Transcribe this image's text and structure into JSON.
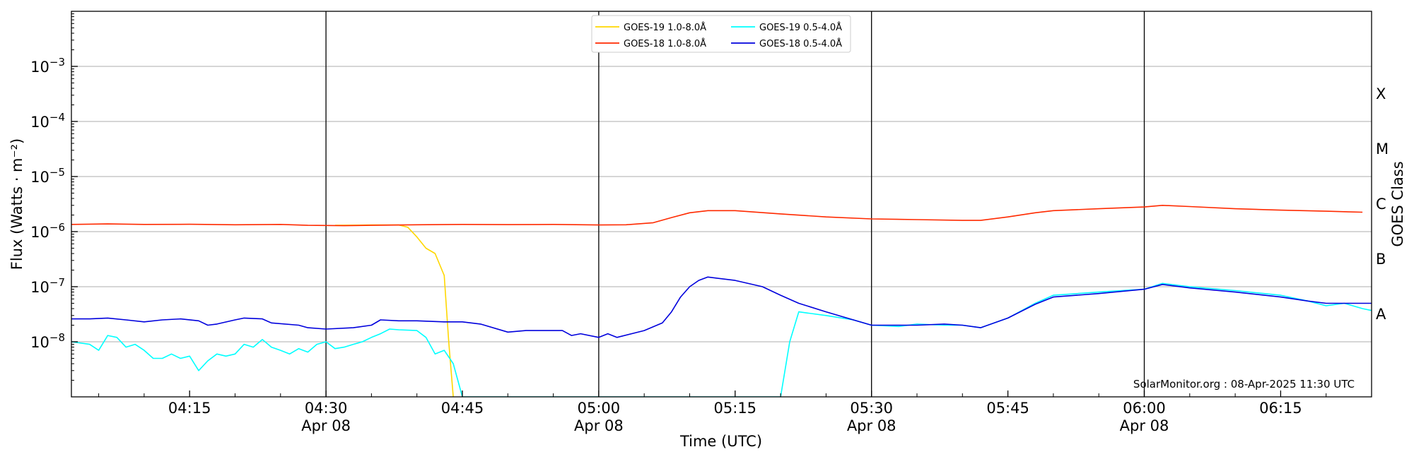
{
  "chart_data": {
    "type": "line",
    "xlabel": "Time (UTC)",
    "ylabel": "Flux (Watts · m⁻²)",
    "y2label": "GOES Class",
    "yscale": "log",
    "xlim": [
      "2025-04-08 04:02",
      "2025-04-08 06:25"
    ],
    "ylim": [
      1e-09,
      0.01
    ],
    "grid": "horizontal at decades, vertical at every 30 min",
    "legend_position": "top-center",
    "watermark": "SolarMonitor.org : 08-Apr-2025 11:30 UTC",
    "x_ticks": [
      {
        "time": "04:15",
        "date": ""
      },
      {
        "time": "04:30",
        "date": "Apr 08"
      },
      {
        "time": "04:45",
        "date": ""
      },
      {
        "time": "05:00",
        "date": "Apr 08"
      },
      {
        "time": "05:15",
        "date": ""
      },
      {
        "time": "05:30",
        "date": "Apr 08"
      },
      {
        "time": "05:45",
        "date": ""
      },
      {
        "time": "06:00",
        "date": "Apr 08"
      },
      {
        "time": "06:15",
        "date": ""
      }
    ],
    "y_ticks": [
      {
        "value": 1e-08,
        "base": "10",
        "exp": "−8"
      },
      {
        "value": 1e-07,
        "base": "10",
        "exp": "−7"
      },
      {
        "value": 1e-06,
        "base": "10",
        "exp": "−6"
      },
      {
        "value": 1e-05,
        "base": "10",
        "exp": "−5"
      },
      {
        "value": 0.0001,
        "base": "10",
        "exp": "−4"
      },
      {
        "value": 0.001,
        "base": "10",
        "exp": "−3"
      }
    ],
    "goes_classes": [
      {
        "label": "A",
        "value": 1e-08
      },
      {
        "label": "B",
        "value": 1e-07
      },
      {
        "label": "C",
        "value": 1e-06
      },
      {
        "label": "M",
        "value": 1e-05
      },
      {
        "label": "X",
        "value": 0.0001
      }
    ],
    "series": [
      {
        "name": "GOES-19 1.0-8.0Å",
        "color": "#ffd700",
        "points": [
          [
            "04:31",
            1.3e-06
          ],
          [
            "04:35",
            1.32e-06
          ],
          [
            "04:38",
            1.32e-06
          ],
          [
            "04:39",
            1.2e-06
          ],
          [
            "04:40",
            8e-07
          ],
          [
            "04:41",
            5e-07
          ],
          [
            "04:42",
            4e-07
          ],
          [
            "04:43",
            1.6e-07
          ],
          [
            "04:43.5",
            1e-08
          ],
          [
            "04:44",
            1e-09
          ]
        ]
      },
      {
        "name": "GOES-18 1.0-8.0Å",
        "color": "#ff2a00",
        "points": [
          [
            "04:02",
            1.35e-06
          ],
          [
            "04:06",
            1.38e-06
          ],
          [
            "04:10",
            1.35e-06
          ],
          [
            "04:15",
            1.36e-06
          ],
          [
            "04:20",
            1.33e-06
          ],
          [
            "04:25",
            1.35e-06
          ],
          [
            "04:28",
            1.3e-06
          ],
          [
            "04:32",
            1.28e-06
          ],
          [
            "04:35",
            1.3e-06
          ],
          [
            "04:40",
            1.33e-06
          ],
          [
            "04:45",
            1.35e-06
          ],
          [
            "04:50",
            1.34e-06
          ],
          [
            "04:55",
            1.35e-06
          ],
          [
            "05:00",
            1.32e-06
          ],
          [
            "05:03",
            1.33e-06
          ],
          [
            "05:06",
            1.45e-06
          ],
          [
            "05:08",
            1.8e-06
          ],
          [
            "05:10",
            2.2e-06
          ],
          [
            "05:12",
            2.4e-06
          ],
          [
            "05:15",
            2.4e-06
          ],
          [
            "05:20",
            2.1e-06
          ],
          [
            "05:25",
            1.85e-06
          ],
          [
            "05:30",
            1.7e-06
          ],
          [
            "05:35",
            1.65e-06
          ],
          [
            "05:40",
            1.6e-06
          ],
          [
            "05:42",
            1.6e-06
          ],
          [
            "05:45",
            1.85e-06
          ],
          [
            "05:48",
            2.2e-06
          ],
          [
            "05:50",
            2.4e-06
          ],
          [
            "05:55",
            2.6e-06
          ],
          [
            "06:00",
            2.8e-06
          ],
          [
            "06:02",
            3e-06
          ],
          [
            "06:05",
            2.85e-06
          ],
          [
            "06:10",
            2.6e-06
          ],
          [
            "06:15",
            2.45e-06
          ],
          [
            "06:20",
            2.35e-06
          ],
          [
            "06:24",
            2.25e-06
          ]
        ]
      },
      {
        "name": "GOES-19 0.5-4.0Å",
        "color": "#00ffff",
        "points": [
          [
            "04:02",
            1e-08
          ],
          [
            "04:04",
            9e-09
          ],
          [
            "04:05",
            7e-09
          ],
          [
            "04:06",
            1.3e-08
          ],
          [
            "04:07",
            1.2e-08
          ],
          [
            "04:08",
            8e-09
          ],
          [
            "04:09",
            9e-09
          ],
          [
            "04:10",
            7e-09
          ],
          [
            "04:11",
            5e-09
          ],
          [
            "04:12",
            5e-09
          ],
          [
            "04:13",
            6e-09
          ],
          [
            "04:14",
            5e-09
          ],
          [
            "04:15",
            5.5e-09
          ],
          [
            "04:16",
            3e-09
          ],
          [
            "04:17",
            4.5e-09
          ],
          [
            "04:18",
            6e-09
          ],
          [
            "04:19",
            5.5e-09
          ],
          [
            "04:20",
            6e-09
          ],
          [
            "04:21",
            9e-09
          ],
          [
            "04:22",
            8e-09
          ],
          [
            "04:23",
            1.1e-08
          ],
          [
            "04:24",
            8e-09
          ],
          [
            "04:25",
            7e-09
          ],
          [
            "04:26",
            6e-09
          ],
          [
            "04:27",
            7.5e-09
          ],
          [
            "04:28",
            6.5e-09
          ],
          [
            "04:29",
            9e-09
          ],
          [
            "04:30",
            1e-08
          ],
          [
            "04:31",
            7.5e-09
          ],
          [
            "04:32",
            8e-09
          ],
          [
            "04:33",
            9e-09
          ],
          [
            "04:34",
            1e-08
          ],
          [
            "04:35",
            1.2e-08
          ],
          [
            "04:36",
            1.4e-08
          ],
          [
            "04:37",
            1.7e-08
          ],
          [
            "04:38",
            1.65e-08
          ],
          [
            "04:40",
            1.6e-08
          ],
          [
            "04:41",
            1.2e-08
          ],
          [
            "04:42",
            6e-09
          ],
          [
            "04:43",
            7e-09
          ],
          [
            "04:44",
            4e-09
          ],
          [
            "04:45",
            1e-09
          ],
          [
            "05:20",
            1e-09
          ],
          [
            "05:21",
            1e-08
          ],
          [
            "05:22",
            3.5e-08
          ],
          [
            "05:25",
            3e-08
          ],
          [
            "05:28",
            2.5e-08
          ],
          [
            "05:30",
            2e-08
          ],
          [
            "05:33",
            1.9e-08
          ],
          [
            "05:35",
            2.1e-08
          ],
          [
            "05:38",
            2e-08
          ],
          [
            "05:40",
            2e-08
          ],
          [
            "05:42",
            1.8e-08
          ],
          [
            "05:45",
            2.7e-08
          ],
          [
            "05:48",
            5e-08
          ],
          [
            "05:50",
            7e-08
          ],
          [
            "05:55",
            8e-08
          ],
          [
            "06:00",
            9e-08
          ],
          [
            "06:02",
            1.15e-07
          ],
          [
            "06:05",
            1e-07
          ],
          [
            "06:10",
            8.5e-08
          ],
          [
            "06:15",
            7e-08
          ],
          [
            "06:18",
            5.5e-08
          ],
          [
            "06:20",
            4.5e-08
          ],
          [
            "06:22",
            5e-08
          ],
          [
            "06:24",
            4e-08
          ],
          [
            "06:25",
            3.7e-08
          ]
        ]
      },
      {
        "name": "GOES-18 0.5-4.0Å",
        "color": "#0000dd",
        "points": [
          [
            "04:02",
            2.6e-08
          ],
          [
            "04:04",
            2.6e-08
          ],
          [
            "04:06",
            2.7e-08
          ],
          [
            "04:08",
            2.5e-08
          ],
          [
            "04:10",
            2.3e-08
          ],
          [
            "04:12",
            2.5e-08
          ],
          [
            "04:14",
            2.6e-08
          ],
          [
            "04:16",
            2.4e-08
          ],
          [
            "04:17",
            2e-08
          ],
          [
            "04:18",
            2.1e-08
          ],
          [
            "04:20",
            2.5e-08
          ],
          [
            "04:21",
            2.7e-08
          ],
          [
            "04:23",
            2.6e-08
          ],
          [
            "04:24",
            2.2e-08
          ],
          [
            "04:27",
            2e-08
          ],
          [
            "04:28",
            1.8e-08
          ],
          [
            "04:30",
            1.7e-08
          ],
          [
            "04:33",
            1.8e-08
          ],
          [
            "04:35",
            2e-08
          ],
          [
            "04:36",
            2.5e-08
          ],
          [
            "04:38",
            2.4e-08
          ],
          [
            "04:40",
            2.4e-08
          ],
          [
            "04:43",
            2.3e-08
          ],
          [
            "04:45",
            2.3e-08
          ],
          [
            "04:47",
            2.1e-08
          ],
          [
            "04:50",
            1.5e-08
          ],
          [
            "04:52",
            1.6e-08
          ],
          [
            "04:54",
            1.6e-08
          ],
          [
            "04:56",
            1.6e-08
          ],
          [
            "04:57",
            1.3e-08
          ],
          [
            "04:58",
            1.4e-08
          ],
          [
            "05:00",
            1.2e-08
          ],
          [
            "05:01",
            1.4e-08
          ],
          [
            "05:02",
            1.2e-08
          ],
          [
            "05:05",
            1.6e-08
          ],
          [
            "05:07",
            2.2e-08
          ],
          [
            "05:08",
            3.5e-08
          ],
          [
            "05:09",
            6.5e-08
          ],
          [
            "05:10",
            1e-07
          ],
          [
            "05:11",
            1.3e-07
          ],
          [
            "05:12",
            1.5e-07
          ],
          [
            "05:15",
            1.3e-07
          ],
          [
            "05:18",
            1e-07
          ],
          [
            "05:20",
            7e-08
          ],
          [
            "05:22",
            5e-08
          ],
          [
            "05:25",
            3.5e-08
          ],
          [
            "05:28",
            2.5e-08
          ],
          [
            "05:30",
            2e-08
          ],
          [
            "05:35",
            2e-08
          ],
          [
            "05:38",
            2.1e-08
          ],
          [
            "05:40",
            2e-08
          ],
          [
            "05:42",
            1.8e-08
          ],
          [
            "05:45",
            2.7e-08
          ],
          [
            "05:48",
            4.8e-08
          ],
          [
            "05:50",
            6.5e-08
          ],
          [
            "05:55",
            7.5e-08
          ],
          [
            "06:00",
            9e-08
          ],
          [
            "06:02",
            1.1e-07
          ],
          [
            "06:05",
            9.5e-08
          ],
          [
            "06:10",
            8e-08
          ],
          [
            "06:15",
            6.5e-08
          ],
          [
            "06:18",
            5.5e-08
          ],
          [
            "06:20",
            5e-08
          ],
          [
            "06:24",
            5e-08
          ],
          [
            "06:25",
            5e-08
          ]
        ]
      }
    ]
  }
}
